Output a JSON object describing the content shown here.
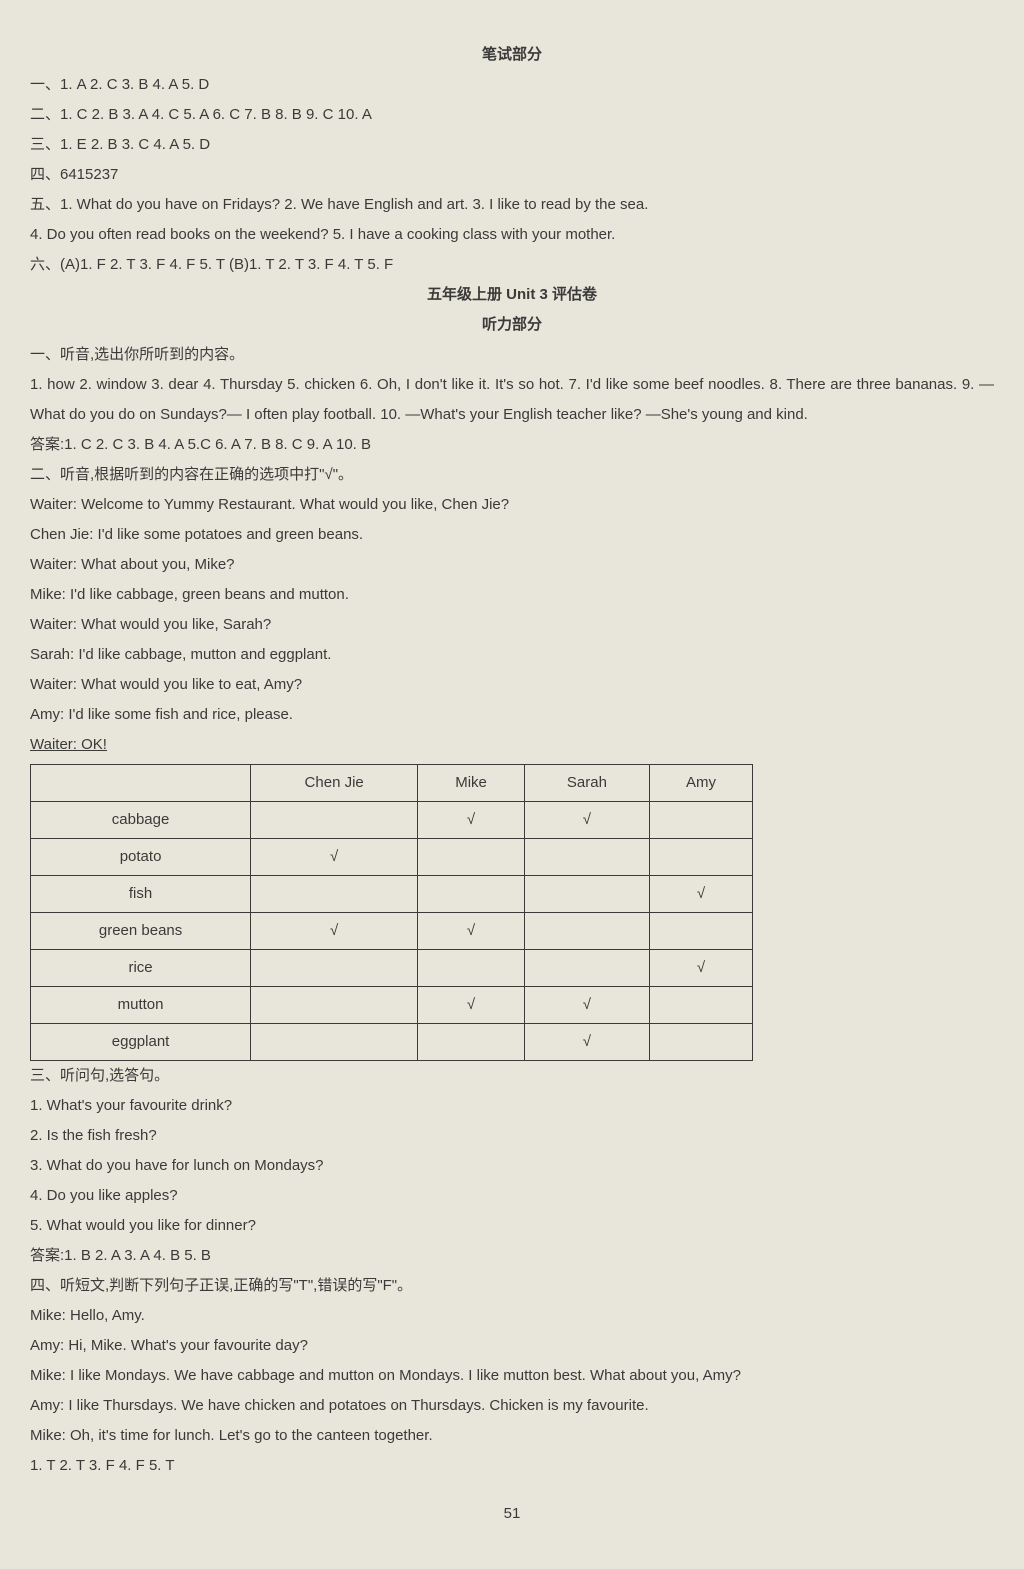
{
  "title1": "笔试部分",
  "s1_line1": "一、1. A  2. C  3. B  4. A  5. D",
  "s1_line2": "二、1. C  2. B  3. A  4. C  5. A  6. C  7. B  8. B  9. C  10. A",
  "s1_line3": "三、1. E  2. B  3. C  4. A  5. D",
  "s1_line4": "四、6415237",
  "s1_line5": "五、1. What do you have on Fridays?   2. We have English and art.   3. I like to read by the sea.",
  "s1_line6": "4. Do you often read books on the weekend?   5. I have a cooking class with your mother.",
  "s1_line7": "六、(A)1. F   2. T   3. F   4. F   5. T   (B)1. T   2. T   3. F   4. T   5. F",
  "title2": "五年级上册 Unit 3 评估卷",
  "title3": "听力部分",
  "s2_h1": "一、听音,选出你所听到的内容。",
  "s2_l1": "1. how   2. window   3. dear   4. Thursday   5. chicken   6. Oh, I don't like it. It's so hot.   7. I'd like some beef noodles.   8. There are three bananas.   9. —What do you do on Sundays?— I often play football.   10. —What's your English teacher like? —She's young and kind.",
  "s2_ans1": "答案:1. C   2. C   3. B   4. A   5.C   6. A   7. B   8. C   9. A   10. B",
  "s2_h2": "二、听音,根据听到的内容在正确的选项中打\"√\"。",
  "d1": "Waiter: Welcome to Yummy Restaurant. What would you like, Chen Jie?",
  "d2": "Chen Jie: I'd like some potatoes and green beans.",
  "d3": "Waiter: What about you, Mike?",
  "d4": "Mike: I'd like cabbage, green beans and mutton.",
  "d5": "Waiter: What would you like, Sarah?",
  "d6": "Sarah: I'd like cabbage, mutton and eggplant.",
  "d7": "Waiter: What would you like to eat, Amy?",
  "d8": "Amy: I'd like some fish and rice, please.",
  "d9": "Waiter: OK!",
  "table": {
    "headers": [
      "",
      "Chen Jie",
      "Mike",
      "Sarah",
      "Amy"
    ],
    "rows": [
      {
        "label": "cabbage",
        "cells": [
          "",
          "√",
          "√",
          ""
        ]
      },
      {
        "label": "potato",
        "cells": [
          "√",
          "",
          "",
          ""
        ]
      },
      {
        "label": "fish",
        "cells": [
          "",
          "",
          "",
          "√"
        ]
      },
      {
        "label": "green beans",
        "cells": [
          "√",
          "√",
          "",
          ""
        ]
      },
      {
        "label": "rice",
        "cells": [
          "",
          "",
          "",
          "√"
        ]
      },
      {
        "label": "mutton",
        "cells": [
          "",
          "√",
          "√",
          ""
        ]
      },
      {
        "label": "eggplant",
        "cells": [
          "",
          "",
          "√",
          ""
        ]
      }
    ]
  },
  "s3_h": "三、听问句,选答句。",
  "s3_1": "1. What's your favourite drink?",
  "s3_2": "2. Is the fish fresh?",
  "s3_3": "3. What do you have for lunch on Mondays?",
  "s3_4": "4. Do you like apples?",
  "s3_5": "5. What would you like for dinner?",
  "s3_ans": "答案:1. B   2. A   3. A   4. B   5. B",
  "s4_h": "四、听短文,判断下列句子正误,正确的写\"T\",错误的写\"F\"。",
  "s4_1": "Mike: Hello, Amy.",
  "s4_2": "Amy: Hi, Mike. What's your favourite day?",
  "s4_3": "Mike: I like Mondays. We have cabbage and mutton on Mondays. I like mutton best. What about you, Amy?",
  "s4_4": "Amy: I like Thursdays. We have chicken and potatoes on Thursdays. Chicken is my favourite.",
  "s4_5": "Mike: Oh, it's time for lunch. Let's go to the canteen together.",
  "s4_ans": "1. T   2. T   3. F   4. F   5. T",
  "pagenum": "51"
}
